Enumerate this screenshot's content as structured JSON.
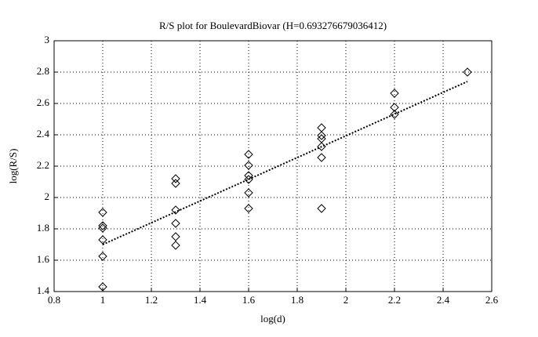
{
  "chart_data": {
    "type": "scatter",
    "title": "R/S plot for BoulevardBiovar (H=0.693276679036412)",
    "x_label": "log(d)",
    "y_label": "log(R/S)",
    "series": [
      {
        "color": "#000000",
        "style": "markers",
        "x": [
          1,
          1,
          1,
          1,
          1,
          1,
          1.3,
          1.3,
          1.3,
          1.3,
          1.3,
          1.3,
          1.6,
          1.6,
          1.6,
          1.6,
          1.6,
          1.6,
          1.9,
          1.9,
          1.9,
          1.9,
          1.9,
          1.9,
          2.2,
          2.2,
          2.2,
          2.5
        ],
        "values": [
          1.905,
          1.82,
          1.805,
          1.73,
          1.625,
          1.43,
          2.12,
          2.09,
          1.92,
          1.835,
          1.75,
          1.695,
          2.275,
          2.205,
          2.14,
          2.115,
          2.03,
          1.93,
          2.445,
          2.395,
          2.375,
          2.325,
          2.255,
          1.93,
          2.665,
          2.575,
          2.53,
          2.8
        ]
      },
      {
        "color": "#000000",
        "style": "dotted-line",
        "x": [
          1,
          2.5
        ],
        "values": [
          1.7,
          2.74
        ]
      }
    ],
    "xlim": [
      0.8,
      2.6
    ],
    "xticks": [
      0.8,
      1,
      1.2,
      1.4,
      1.6,
      1.8,
      2,
      2.2,
      2.4,
      2.6
    ],
    "ylim": [
      1.4,
      3
    ],
    "yticks": [
      1.4,
      1.6,
      1.8,
      2,
      2.2,
      2.4,
      2.6,
      2.8,
      3
    ],
    "grid": true
  }
}
